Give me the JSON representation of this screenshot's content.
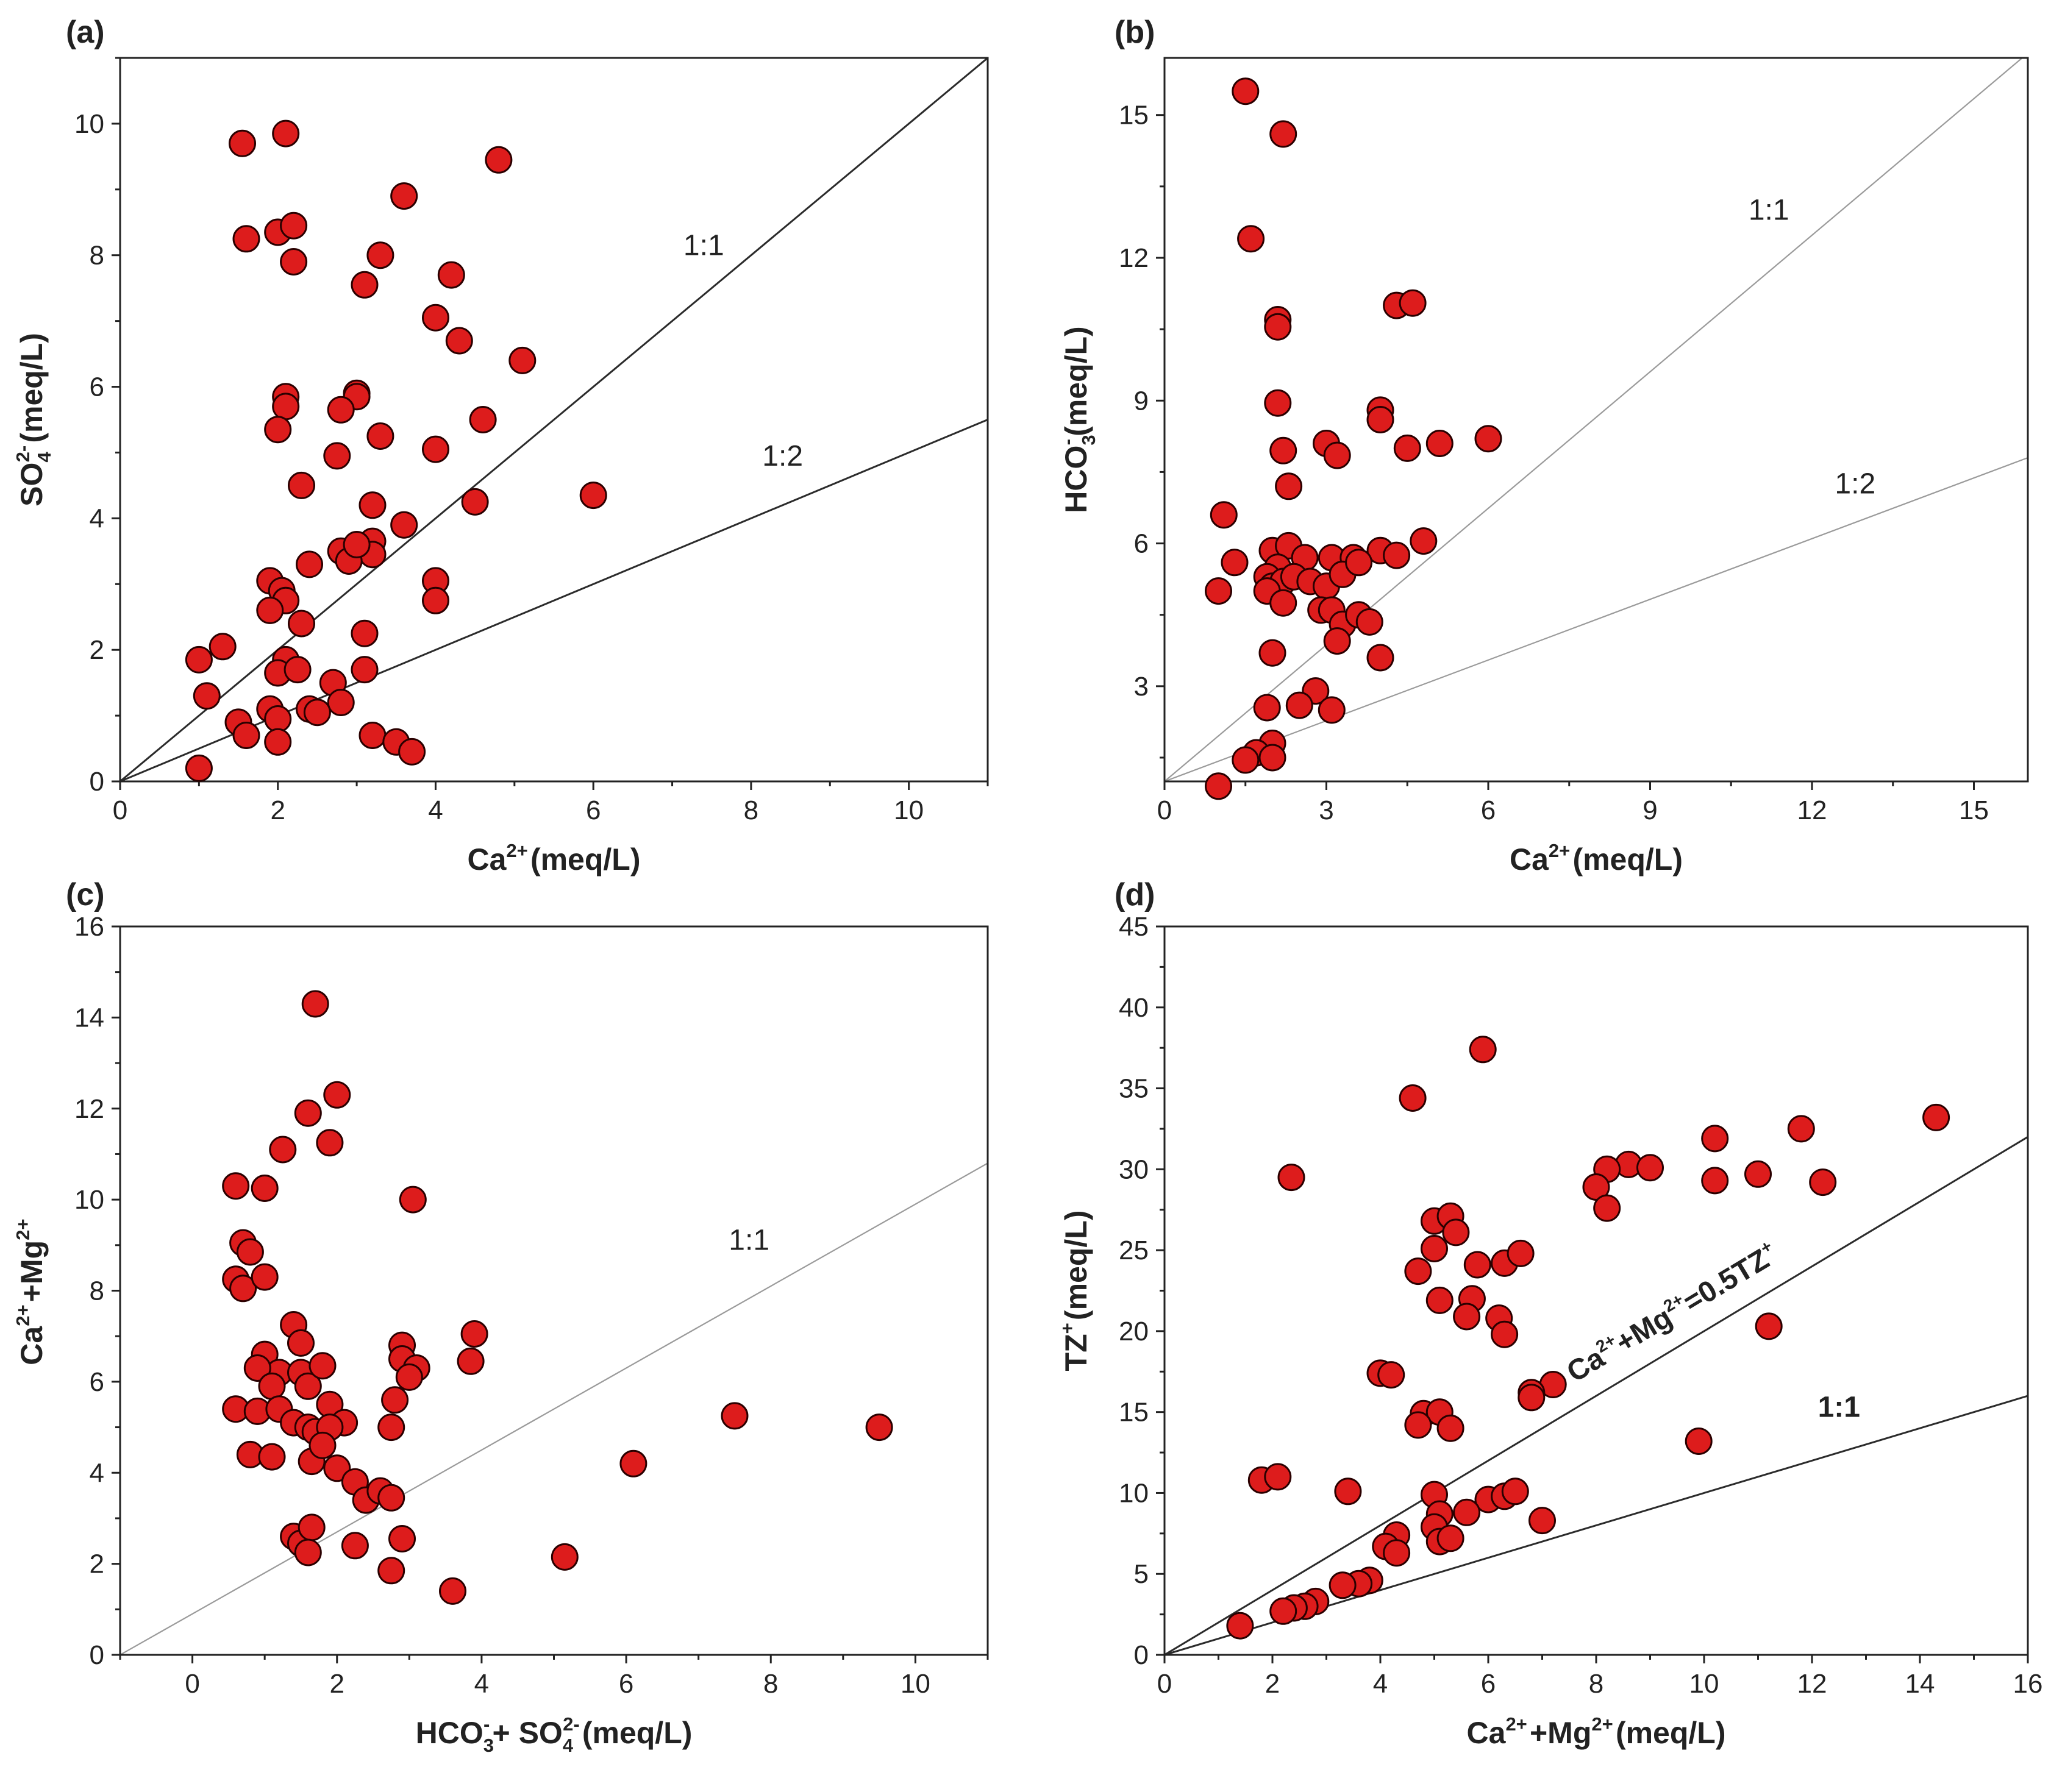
{
  "colors": {
    "point_fill": "#dd1c1c",
    "point_stroke": "#2a0000",
    "axis": "#222222"
  },
  "chart_data": [
    {
      "type": "scatter",
      "panel": "(a)",
      "xlabel": {
        "main": "Ca",
        "sup": "2+",
        "tail": "(meq/L)"
      },
      "ylabel": {
        "main": "SO",
        "sub": "4",
        "sup": "2-",
        "tail": "(meq/L)"
      },
      "xlim": [
        0,
        11
      ],
      "ylim": [
        0,
        11
      ],
      "xticks": [
        0,
        2,
        4,
        6,
        8,
        10
      ],
      "yticks": [
        0,
        2,
        4,
        6,
        8,
        10
      ],
      "lines": [
        {
          "label": "1:1",
          "x": [
            0,
            11
          ],
          "y": [
            0,
            11
          ],
          "dark": true,
          "label_at": [
            7.4,
            8.0
          ]
        },
        {
          "label": "1:2",
          "x": [
            0,
            11
          ],
          "y": [
            0,
            5.5
          ],
          "dark": true,
          "label_at": [
            8.4,
            4.8
          ]
        }
      ],
      "points": [
        [
          1.55,
          9.7
        ],
        [
          2.1,
          9.85
        ],
        [
          1.6,
          8.25
        ],
        [
          2.0,
          8.35
        ],
        [
          2.2,
          8.45
        ],
        [
          2.2,
          7.9
        ],
        [
          3.6,
          8.9
        ],
        [
          3.3,
          8.0
        ],
        [
          3.1,
          7.55
        ],
        [
          4.2,
          7.7
        ],
        [
          4.0,
          7.05
        ],
        [
          4.3,
          6.7
        ],
        [
          4.8,
          9.45
        ],
        [
          5.1,
          6.4
        ],
        [
          3.0,
          5.9
        ],
        [
          3.0,
          5.85
        ],
        [
          2.1,
          5.85
        ],
        [
          2.1,
          5.7
        ],
        [
          2.0,
          5.35
        ],
        [
          2.8,
          5.65
        ],
        [
          3.3,
          5.25
        ],
        [
          2.75,
          4.95
        ],
        [
          4.0,
          5.05
        ],
        [
          4.6,
          5.5
        ],
        [
          2.3,
          4.5
        ],
        [
          3.2,
          4.2
        ],
        [
          4.5,
          4.25
        ],
        [
          6.0,
          4.35
        ],
        [
          3.6,
          3.9
        ],
        [
          2.8,
          3.5
        ],
        [
          3.2,
          3.65
        ],
        [
          3.2,
          3.45
        ],
        [
          2.9,
          3.35
        ],
        [
          3.0,
          3.6
        ],
        [
          2.4,
          3.3
        ],
        [
          4.0,
          3.05
        ],
        [
          4.0,
          2.75
        ],
        [
          1.9,
          3.05
        ],
        [
          2.05,
          2.9
        ],
        [
          2.1,
          2.75
        ],
        [
          1.9,
          2.6
        ],
        [
          2.3,
          2.4
        ],
        [
          3.1,
          2.25
        ],
        [
          1.0,
          1.85
        ],
        [
          1.3,
          2.05
        ],
        [
          2.1,
          1.85
        ],
        [
          2.0,
          1.65
        ],
        [
          2.25,
          1.7
        ],
        [
          3.1,
          1.7
        ],
        [
          2.7,
          1.5
        ],
        [
          1.1,
          1.3
        ],
        [
          2.4,
          1.1
        ],
        [
          2.8,
          1.2
        ],
        [
          1.9,
          1.1
        ],
        [
          2.0,
          0.95
        ],
        [
          2.5,
          1.05
        ],
        [
          1.5,
          0.9
        ],
        [
          1.6,
          0.7
        ],
        [
          2.0,
          0.6
        ],
        [
          3.2,
          0.7
        ],
        [
          3.5,
          0.6
        ],
        [
          3.7,
          0.45
        ],
        [
          1.0,
          0.2
        ]
      ]
    },
    {
      "type": "scatter",
      "panel": "(b)",
      "xlabel": {
        "main": "Ca",
        "sup": "2+",
        "tail": "(meq/L)"
      },
      "ylabel": {
        "main": "HCO",
        "sub": "3",
        "sup": "-",
        "tail": "(meq/L)"
      },
      "xlim": [
        0,
        16
      ],
      "ylim": [
        1,
        16.2
      ],
      "xticks": [
        0,
        3,
        6,
        9,
        12,
        15
      ],
      "yticks": [
        3,
        6,
        9,
        12,
        15
      ],
      "lines": [
        {
          "label": "1:1",
          "x": [
            0,
            16
          ],
          "y": [
            1,
            16.3
          ],
          "dark": false,
          "label_at": [
            11.2,
            12.8
          ]
        },
        {
          "label": "1:2",
          "x": [
            0,
            16
          ],
          "y": [
            1,
            7.8
          ],
          "dark": false,
          "label_at": [
            12.8,
            7.05
          ]
        }
      ],
      "points": [
        [
          1.5,
          15.5
        ],
        [
          2.2,
          14.6
        ],
        [
          1.6,
          12.4
        ],
        [
          2.1,
          10.7
        ],
        [
          2.1,
          10.55
        ],
        [
          4.3,
          11.0
        ],
        [
          4.6,
          11.05
        ],
        [
          2.1,
          8.95
        ],
        [
          4.0,
          8.8
        ],
        [
          4.0,
          8.6
        ],
        [
          3.0,
          8.1
        ],
        [
          3.2,
          7.85
        ],
        [
          2.2,
          7.95
        ],
        [
          4.5,
          8.0
        ],
        [
          5.1,
          8.1
        ],
        [
          6.0,
          8.2
        ],
        [
          2.3,
          7.2
        ],
        [
          1.1,
          6.6
        ],
        [
          1.3,
          5.6
        ],
        [
          1.0,
          5.0
        ],
        [
          2.0,
          5.85
        ],
        [
          2.3,
          5.95
        ],
        [
          2.1,
          5.5
        ],
        [
          2.6,
          5.7
        ],
        [
          3.1,
          5.7
        ],
        [
          3.5,
          5.7
        ],
        [
          4.0,
          5.85
        ],
        [
          4.3,
          5.75
        ],
        [
          4.8,
          6.05
        ],
        [
          1.9,
          5.3
        ],
        [
          2.0,
          5.1
        ],
        [
          2.2,
          5.2
        ],
        [
          2.4,
          5.3
        ],
        [
          2.7,
          5.2
        ],
        [
          3.0,
          5.1
        ],
        [
          3.3,
          5.35
        ],
        [
          3.6,
          5.6
        ],
        [
          1.9,
          5.0
        ],
        [
          2.2,
          4.75
        ],
        [
          2.9,
          4.6
        ],
        [
          3.1,
          4.6
        ],
        [
          3.3,
          4.3
        ],
        [
          3.6,
          4.5
        ],
        [
          3.8,
          4.35
        ],
        [
          3.2,
          3.95
        ],
        [
          4.0,
          3.6
        ],
        [
          2.0,
          3.7
        ],
        [
          2.8,
          2.9
        ],
        [
          2.5,
          2.6
        ],
        [
          3.1,
          2.5
        ],
        [
          1.9,
          2.55
        ],
        [
          2.0,
          1.8
        ],
        [
          1.7,
          1.6
        ],
        [
          1.5,
          1.45
        ],
        [
          2.0,
          1.5
        ],
        [
          1.0,
          0.9
        ]
      ]
    },
    {
      "type": "scatter",
      "panel": "(c)",
      "xlabel": {
        "main": "HCO",
        "sub": "3",
        "sup": "-",
        "mid": "+ SO",
        "sub2": "4",
        "sup2": "2-",
        "tail": "(meq/L)"
      },
      "ylabel": {
        "main": "Ca",
        "sup": "2+",
        "mid": "+Mg",
        "sup2": "2+",
        "tail": ""
      },
      "xlim": [
        -1,
        11
      ],
      "ylim": [
        0,
        16
      ],
      "xticks": [
        0,
        2,
        4,
        6,
        8,
        10
      ],
      "yticks": [
        0,
        2,
        4,
        6,
        8,
        10,
        12,
        14,
        16
      ],
      "lines": [
        {
          "label": "1:1",
          "x": [
            -1,
            11
          ],
          "y": [
            0,
            10.8
          ],
          "dark": false,
          "label_at": [
            7.7,
            8.9
          ]
        }
      ],
      "points": [
        [
          1.7,
          14.3
        ],
        [
          2.0,
          12.3
        ],
        [
          1.6,
          11.9
        ],
        [
          1.9,
          11.25
        ],
        [
          1.25,
          11.1
        ],
        [
          0.6,
          10.3
        ],
        [
          1.0,
          10.25
        ],
        [
          3.05,
          10.0
        ],
        [
          0.7,
          9.05
        ],
        [
          0.8,
          8.85
        ],
        [
          0.6,
          8.25
        ],
        [
          0.7,
          8.05
        ],
        [
          1.0,
          8.3
        ],
        [
          1.4,
          7.25
        ],
        [
          1.5,
          6.85
        ],
        [
          3.9,
          7.05
        ],
        [
          1.0,
          6.6
        ],
        [
          1.2,
          6.2
        ],
        [
          0.9,
          6.3
        ],
        [
          1.1,
          5.9
        ],
        [
          1.5,
          6.2
        ],
        [
          1.6,
          5.9
        ],
        [
          1.8,
          6.35
        ],
        [
          2.9,
          6.8
        ],
        [
          2.9,
          6.5
        ],
        [
          3.1,
          6.3
        ],
        [
          3.0,
          6.1
        ],
        [
          3.85,
          6.45
        ],
        [
          0.6,
          5.4
        ],
        [
          0.9,
          5.35
        ],
        [
          1.2,
          5.4
        ],
        [
          1.4,
          5.1
        ],
        [
          1.6,
          5.0
        ],
        [
          1.7,
          4.9
        ],
        [
          1.9,
          5.5
        ],
        [
          2.1,
          5.1
        ],
        [
          1.9,
          5.0
        ],
        [
          2.8,
          5.6
        ],
        [
          2.75,
          5.0
        ],
        [
          0.8,
          4.4
        ],
        [
          1.1,
          4.35
        ],
        [
          1.65,
          4.25
        ],
        [
          1.8,
          4.6
        ],
        [
          2.0,
          4.1
        ],
        [
          2.25,
          3.8
        ],
        [
          2.4,
          3.4
        ],
        [
          2.6,
          3.6
        ],
        [
          2.75,
          3.45
        ],
        [
          1.4,
          2.6
        ],
        [
          1.5,
          2.45
        ],
        [
          1.65,
          2.8
        ],
        [
          1.6,
          2.25
        ],
        [
          2.25,
          2.4
        ],
        [
          2.9,
          2.55
        ],
        [
          2.75,
          1.85
        ],
        [
          3.6,
          1.4
        ],
        [
          5.15,
          2.15
        ],
        [
          6.1,
          4.2
        ],
        [
          7.5,
          5.25
        ],
        [
          9.5,
          5.0
        ]
      ]
    },
    {
      "type": "scatter",
      "panel": "(d)",
      "xlabel": {
        "main": "Ca",
        "sup": "2+",
        "mid": "+Mg",
        "sup2": "2+",
        "tail": "(meq/L)"
      },
      "ylabel": {
        "main": "TZ",
        "sup": "+",
        "tail": "(meq/L)"
      },
      "xlim": [
        0,
        16
      ],
      "ylim": [
        0,
        45
      ],
      "xticks": [
        0,
        2,
        4,
        6,
        8,
        10,
        12,
        14,
        16
      ],
      "yticks": [
        0,
        5,
        10,
        15,
        20,
        25,
        30,
        35,
        40,
        45
      ],
      "lines": [
        {
          "label": "Ca2++Mg2+=0.5TZ+",
          "x": [
            0,
            16
          ],
          "y": [
            0,
            32
          ],
          "dark": true,
          "rich": true,
          "label_at": [
            7.6,
            16.8
          ]
        },
        {
          "label": "1:1",
          "x": [
            0,
            16
          ],
          "y": [
            0,
            16
          ],
          "dark": true,
          "bold": true,
          "label_at": [
            12.5,
            14.7
          ]
        }
      ],
      "points": [
        [
          5.9,
          37.4
        ],
        [
          4.6,
          34.4
        ],
        [
          2.35,
          29.5
        ],
        [
          14.3,
          33.2
        ],
        [
          11.8,
          32.5
        ],
        [
          10.2,
          31.9
        ],
        [
          8.6,
          30.3
        ],
        [
          9.0,
          30.1
        ],
        [
          8.2,
          30.0
        ],
        [
          8.0,
          28.9
        ],
        [
          8.2,
          27.6
        ],
        [
          10.2,
          29.3
        ],
        [
          11.0,
          29.7
        ],
        [
          12.2,
          29.2
        ],
        [
          5.0,
          26.8
        ],
        [
          5.3,
          27.1
        ],
        [
          5.4,
          26.1
        ],
        [
          5.0,
          25.1
        ],
        [
          4.7,
          23.7
        ],
        [
          6.3,
          24.2
        ],
        [
          6.6,
          24.8
        ],
        [
          5.8,
          24.1
        ],
        [
          5.1,
          21.9
        ],
        [
          5.7,
          22.0
        ],
        [
          5.6,
          20.9
        ],
        [
          6.2,
          20.8
        ],
        [
          6.3,
          19.8
        ],
        [
          11.2,
          20.3
        ],
        [
          4.0,
          17.4
        ],
        [
          4.2,
          17.3
        ],
        [
          7.2,
          16.7
        ],
        [
          6.8,
          16.2
        ],
        [
          6.8,
          15.9
        ],
        [
          4.8,
          14.9
        ],
        [
          5.1,
          15.0
        ],
        [
          4.7,
          14.2
        ],
        [
          5.3,
          14.0
        ],
        [
          9.9,
          13.2
        ],
        [
          1.8,
          10.8
        ],
        [
          2.1,
          11.0
        ],
        [
          3.4,
          10.1
        ],
        [
          5.0,
          9.9
        ],
        [
          6.0,
          9.6
        ],
        [
          6.3,
          9.8
        ],
        [
          6.5,
          10.1
        ],
        [
          5.1,
          8.7
        ],
        [
          5.6,
          8.8
        ],
        [
          5.0,
          7.9
        ],
        [
          7.0,
          8.3
        ],
        [
          5.1,
          7.0
        ],
        [
          5.3,
          7.2
        ],
        [
          4.3,
          7.4
        ],
        [
          4.1,
          6.7
        ],
        [
          4.3,
          6.3
        ],
        [
          3.8,
          4.6
        ],
        [
          3.6,
          4.4
        ],
        [
          3.3,
          4.3
        ],
        [
          2.8,
          3.3
        ],
        [
          2.6,
          3.0
        ],
        [
          2.4,
          2.9
        ],
        [
          2.2,
          2.7
        ],
        [
          1.4,
          1.8
        ]
      ]
    }
  ]
}
